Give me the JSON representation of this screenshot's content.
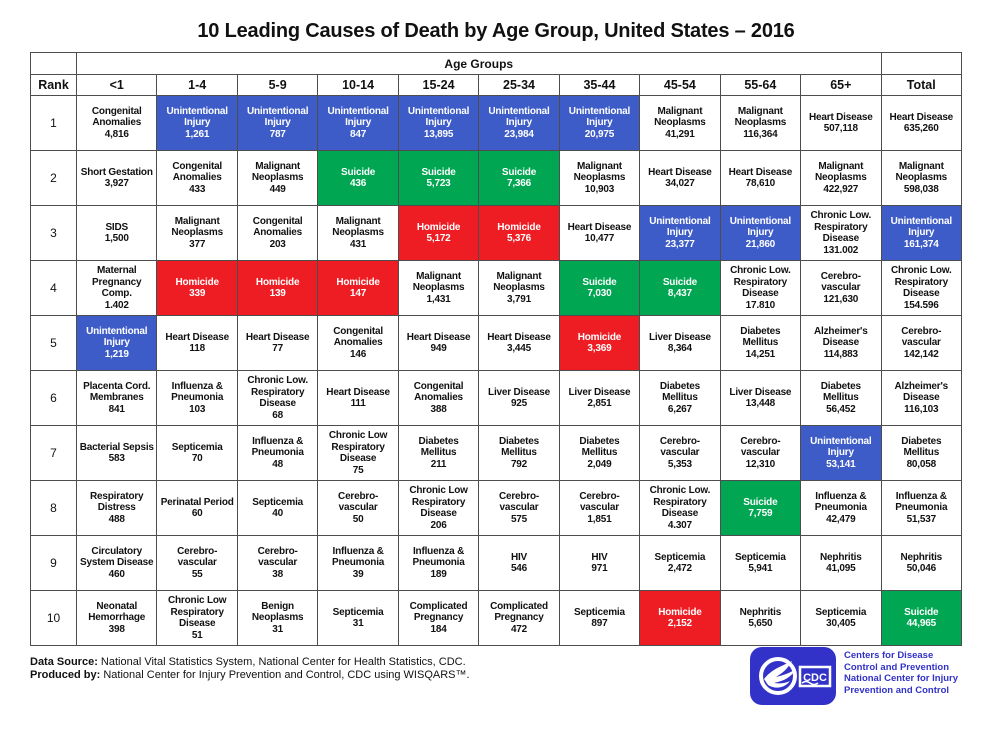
{
  "title": "10 Leading Causes of Death by Age Group, United States – 2016",
  "chart_data": {
    "type": "table",
    "title": "10 Leading Causes of Death by Age Group, United States – 2016",
    "age_groups_label": "Age Groups",
    "columns": [
      "Rank",
      "<1",
      "1-4",
      "5-9",
      "10-14",
      "15-24",
      "25-34",
      "35-44",
      "45-54",
      "55-64",
      "65+",
      "Total"
    ],
    "highlight_colors": {
      "blue": "#3e5cc7",
      "green": "#00a651",
      "red": "#ee1c23"
    },
    "color_key": {
      "blue": "Unintentional Injury",
      "green": "Suicide",
      "red": "Homicide"
    },
    "rows": [
      {
        "rank": "1",
        "cells": [
          {
            "cause": "Congenital Anomalies",
            "value": "4,816",
            "highlight": "none"
          },
          {
            "cause": "Unintentional Injury",
            "value": "1,261",
            "highlight": "blue"
          },
          {
            "cause": "Unintentional Injury",
            "value": "787",
            "highlight": "blue"
          },
          {
            "cause": "Unintentional Injury",
            "value": "847",
            "highlight": "blue"
          },
          {
            "cause": "Unintentional Injury",
            "value": "13,895",
            "highlight": "blue"
          },
          {
            "cause": "Unintentional Injury",
            "value": "23,984",
            "highlight": "blue"
          },
          {
            "cause": "Unintentional Injury",
            "value": "20,975",
            "highlight": "blue"
          },
          {
            "cause": "Malignant Neoplasms",
            "value": "41,291",
            "highlight": "none"
          },
          {
            "cause": "Malignant Neoplasms",
            "value": "116,364",
            "highlight": "none"
          },
          {
            "cause": "Heart Disease",
            "value": "507,118",
            "highlight": "none"
          },
          {
            "cause": "Heart Disease",
            "value": "635,260",
            "highlight": "none"
          }
        ]
      },
      {
        "rank": "2",
        "cells": [
          {
            "cause": "Short Gestation",
            "value": "3,927",
            "highlight": "none"
          },
          {
            "cause": "Congenital Anomalies",
            "value": "433",
            "highlight": "none"
          },
          {
            "cause": "Malignant Neoplasms",
            "value": "449",
            "highlight": "none"
          },
          {
            "cause": "Suicide",
            "value": "436",
            "highlight": "green"
          },
          {
            "cause": "Suicide",
            "value": "5,723",
            "highlight": "green"
          },
          {
            "cause": "Suicide",
            "value": "7,366",
            "highlight": "green"
          },
          {
            "cause": "Malignant Neoplasms",
            "value": "10,903",
            "highlight": "none"
          },
          {
            "cause": "Heart Disease",
            "value": "34,027",
            "highlight": "none"
          },
          {
            "cause": "Heart Disease",
            "value": "78,610",
            "highlight": "none"
          },
          {
            "cause": "Malignant Neoplasms",
            "value": "422,927",
            "highlight": "none"
          },
          {
            "cause": "Malignant Neoplasms",
            "value": "598,038",
            "highlight": "none"
          }
        ]
      },
      {
        "rank": "3",
        "cells": [
          {
            "cause": "SIDS",
            "value": "1,500",
            "highlight": "none"
          },
          {
            "cause": "Malignant Neoplasms",
            "value": "377",
            "highlight": "none"
          },
          {
            "cause": "Congenital Anomalies",
            "value": "203",
            "highlight": "none"
          },
          {
            "cause": "Malignant Neoplasms",
            "value": "431",
            "highlight": "none"
          },
          {
            "cause": "Homicide",
            "value": "5,172",
            "highlight": "red"
          },
          {
            "cause": "Homicide",
            "value": "5,376",
            "highlight": "red"
          },
          {
            "cause": "Heart Disease",
            "value": "10,477",
            "highlight": "none"
          },
          {
            "cause": "Unintentional Injury",
            "value": "23,377",
            "highlight": "blue"
          },
          {
            "cause": "Unintentional Injury",
            "value": "21,860",
            "highlight": "blue"
          },
          {
            "cause": "Chronic Low. Respiratory Disease",
            "value": "131.002",
            "highlight": "none"
          },
          {
            "cause": "Unintentional Injury",
            "value": "161,374",
            "highlight": "blue"
          }
        ]
      },
      {
        "rank": "4",
        "cells": [
          {
            "cause": "Maternal Pregnancy Comp.",
            "value": "1.402",
            "highlight": "none"
          },
          {
            "cause": "Homicide",
            "value": "339",
            "highlight": "red"
          },
          {
            "cause": "Homicide",
            "value": "139",
            "highlight": "red"
          },
          {
            "cause": "Homicide",
            "value": "147",
            "highlight": "red"
          },
          {
            "cause": "Malignant Neoplasms",
            "value": "1,431",
            "highlight": "none"
          },
          {
            "cause": "Malignant Neoplasms",
            "value": "3,791",
            "highlight": "none"
          },
          {
            "cause": "Suicide",
            "value": "7,030",
            "highlight": "green"
          },
          {
            "cause": "Suicide",
            "value": "8,437",
            "highlight": "green"
          },
          {
            "cause": "Chronic Low. Respiratory Disease",
            "value": "17.810",
            "highlight": "none"
          },
          {
            "cause": "Cerebro-vascular",
            "value": "121,630",
            "highlight": "none"
          },
          {
            "cause": "Chronic Low. Respiratory Disease",
            "value": "154.596",
            "highlight": "none"
          }
        ]
      },
      {
        "rank": "5",
        "cells": [
          {
            "cause": "Unintentional Injury",
            "value": "1,219",
            "highlight": "blue"
          },
          {
            "cause": "Heart Disease",
            "value": "118",
            "highlight": "none"
          },
          {
            "cause": "Heart Disease",
            "value": "77",
            "highlight": "none"
          },
          {
            "cause": "Congenital Anomalies",
            "value": "146",
            "highlight": "none"
          },
          {
            "cause": "Heart Disease",
            "value": "949",
            "highlight": "none"
          },
          {
            "cause": "Heart Disease",
            "value": "3,445",
            "highlight": "none"
          },
          {
            "cause": "Homicide",
            "value": "3,369",
            "highlight": "red"
          },
          {
            "cause": "Liver Disease",
            "value": "8,364",
            "highlight": "none"
          },
          {
            "cause": "Diabetes Mellitus",
            "value": "14,251",
            "highlight": "none"
          },
          {
            "cause": "Alzheimer's Disease",
            "value": "114,883",
            "highlight": "none"
          },
          {
            "cause": "Cerebro-vascular",
            "value": "142,142",
            "highlight": "none"
          }
        ]
      },
      {
        "rank": "6",
        "cells": [
          {
            "cause": "Placenta Cord. Membranes",
            "value": "841",
            "highlight": "none"
          },
          {
            "cause": "Influenza & Pneumonia",
            "value": "103",
            "highlight": "none"
          },
          {
            "cause": "Chronic Low. Respiratory Disease",
            "value": "68",
            "highlight": "none"
          },
          {
            "cause": "Heart Disease",
            "value": "111",
            "highlight": "none"
          },
          {
            "cause": "Congenital Anomalies",
            "value": "388",
            "highlight": "none"
          },
          {
            "cause": "Liver Disease",
            "value": "925",
            "highlight": "none"
          },
          {
            "cause": "Liver Disease",
            "value": "2,851",
            "highlight": "none"
          },
          {
            "cause": "Diabetes Mellitus",
            "value": "6,267",
            "highlight": "none"
          },
          {
            "cause": "Liver Disease",
            "value": "13,448",
            "highlight": "none"
          },
          {
            "cause": "Diabetes Mellitus",
            "value": "56,452",
            "highlight": "none"
          },
          {
            "cause": "Alzheimer's Disease",
            "value": "116,103",
            "highlight": "none"
          }
        ]
      },
      {
        "rank": "7",
        "cells": [
          {
            "cause": "Bacterial Sepsis",
            "value": "583",
            "highlight": "none"
          },
          {
            "cause": "Septicemia",
            "value": "70",
            "highlight": "none"
          },
          {
            "cause": "Influenza & Pneumonia",
            "value": "48",
            "highlight": "none"
          },
          {
            "cause": "Chronic Low Respiratory Disease",
            "value": "75",
            "highlight": "none"
          },
          {
            "cause": "Diabetes Mellitus",
            "value": "211",
            "highlight": "none"
          },
          {
            "cause": "Diabetes Mellitus",
            "value": "792",
            "highlight": "none"
          },
          {
            "cause": "Diabetes Mellitus",
            "value": "2,049",
            "highlight": "none"
          },
          {
            "cause": "Cerebro-vascular",
            "value": "5,353",
            "highlight": "none"
          },
          {
            "cause": "Cerebro-vascular",
            "value": "12,310",
            "highlight": "none"
          },
          {
            "cause": "Unintentional Injury",
            "value": "53,141",
            "highlight": "blue"
          },
          {
            "cause": "Diabetes Mellitus",
            "value": "80,058",
            "highlight": "none"
          }
        ]
      },
      {
        "rank": "8",
        "cells": [
          {
            "cause": "Respiratory Distress",
            "value": "488",
            "highlight": "none"
          },
          {
            "cause": "Perinatal Period",
            "value": "60",
            "highlight": "none"
          },
          {
            "cause": "Septicemia",
            "value": "40",
            "highlight": "none"
          },
          {
            "cause": "Cerebro-vascular",
            "value": "50",
            "highlight": "none"
          },
          {
            "cause": "Chronic Low Respiratory Disease",
            "value": "206",
            "highlight": "none"
          },
          {
            "cause": "Cerebro-vascular",
            "value": "575",
            "highlight": "none"
          },
          {
            "cause": "Cerebro-vascular",
            "value": "1,851",
            "highlight": "none"
          },
          {
            "cause": "Chronic Low. Respiratory Disease",
            "value": "4.307",
            "highlight": "none"
          },
          {
            "cause": "Suicide",
            "value": "7,759",
            "highlight": "green"
          },
          {
            "cause": "Influenza & Pneumonia",
            "value": "42,479",
            "highlight": "none"
          },
          {
            "cause": "Influenza & Pneumonia",
            "value": "51,537",
            "highlight": "none"
          }
        ]
      },
      {
        "rank": "9",
        "cells": [
          {
            "cause": "Circulatory System Disease",
            "value": "460",
            "highlight": "none"
          },
          {
            "cause": "Cerebro-vascular",
            "value": "55",
            "highlight": "none"
          },
          {
            "cause": "Cerebro-vascular",
            "value": "38",
            "highlight": "none"
          },
          {
            "cause": "Influenza & Pneumonia",
            "value": "39",
            "highlight": "none"
          },
          {
            "cause": "Influenza & Pneumonia",
            "value": "189",
            "highlight": "none"
          },
          {
            "cause": "HIV",
            "value": "546",
            "highlight": "none"
          },
          {
            "cause": "HIV",
            "value": "971",
            "highlight": "none"
          },
          {
            "cause": "Septicemia",
            "value": "2,472",
            "highlight": "none"
          },
          {
            "cause": "Septicemia",
            "value": "5,941",
            "highlight": "none"
          },
          {
            "cause": "Nephritis",
            "value": "41,095",
            "highlight": "none"
          },
          {
            "cause": "Nephritis",
            "value": "50,046",
            "highlight": "none"
          }
        ]
      },
      {
        "rank": "10",
        "cells": [
          {
            "cause": "Neonatal Hemorrhage",
            "value": "398",
            "highlight": "none"
          },
          {
            "cause": "Chronic Low Respiratory Disease",
            "value": "51",
            "highlight": "none"
          },
          {
            "cause": "Benign Neoplasms",
            "value": "31",
            "highlight": "none"
          },
          {
            "cause": "Septicemia",
            "value": "31",
            "highlight": "none"
          },
          {
            "cause": "Complicated Pregnancy",
            "value": "184",
            "highlight": "none"
          },
          {
            "cause": "Complicated Pregnancy",
            "value": "472",
            "highlight": "none"
          },
          {
            "cause": "Septicemia",
            "value": "897",
            "highlight": "none"
          },
          {
            "cause": "Homicide",
            "value": "2,152",
            "highlight": "red"
          },
          {
            "cause": "Nephritis",
            "value": "5,650",
            "highlight": "none"
          },
          {
            "cause": "Septicemia",
            "value": "30,405",
            "highlight": "none"
          },
          {
            "cause": "Suicide",
            "value": "44,965",
            "highlight": "green"
          }
        ]
      }
    ]
  },
  "footer": {
    "data_source_label": "Data Source:",
    "data_source_text": " National Vital Statistics System, National Center for Health Statistics, CDC.",
    "produced_by_label": "Produced by:",
    "produced_by_text": " National Center for Injury Prevention and Control, CDC using WISQARS™."
  },
  "logo": {
    "cdc_text": "CDC",
    "lines": {
      "0": "Centers for Disease",
      "1": "Control and Prevention",
      "2": "National Center for Injury",
      "3": "Prevention and Control"
    }
  }
}
